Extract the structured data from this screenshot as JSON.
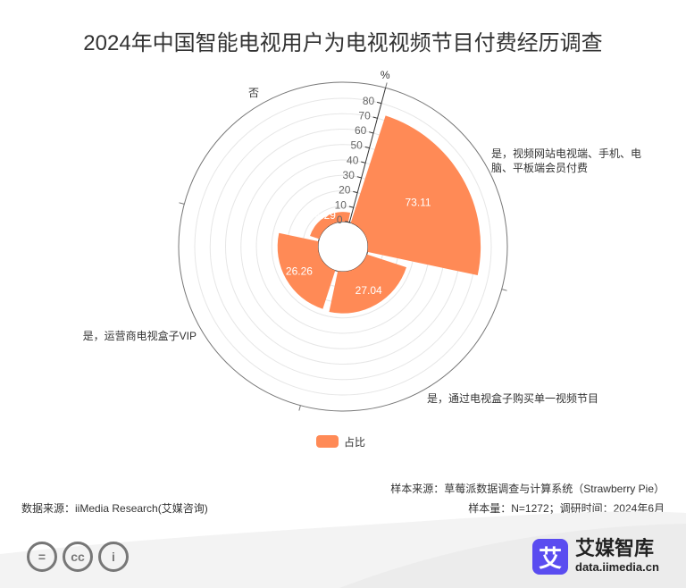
{
  "title": "2024年中国智能电视用户为电视视频节目付费经历调查",
  "chart_data": {
    "type": "polar-bar",
    "title": "2024年中国智能电视用户为电视视频节目付费经历调查",
    "categories": [
      "是，视频网站电视端、手机、电脑、平板端会员付费",
      "是，通过电视盒子购买单一视频节目",
      "是，运营商电视盒子VIP",
      "否"
    ],
    "series": [
      {
        "name": "占比",
        "values": [
          73.11,
          27.04,
          26.26,
          6.29
        ],
        "color": "#ff8a56"
      }
    ],
    "radial_axis": {
      "unit": "%",
      "range": [
        0,
        80
      ],
      "ticks": [
        0,
        10,
        20,
        30,
        40,
        50,
        60,
        70,
        80
      ]
    },
    "grid": true,
    "legend": "bottom-center"
  },
  "legend_label": "占比",
  "notes": {
    "sample_source": "样本来源：草莓派数据调查与计算系统（Strawberry Pie）",
    "data_source": "数据来源：iiMedia Research(艾媒咨询)",
    "sample_info": "样本量：N=1272；调研时间：2024年6月"
  },
  "brand": {
    "logo_char": "艾",
    "name": "艾媒智库",
    "url": "data.iimedia.cn"
  },
  "cc_icons": [
    "=",
    "cc",
    "i"
  ]
}
